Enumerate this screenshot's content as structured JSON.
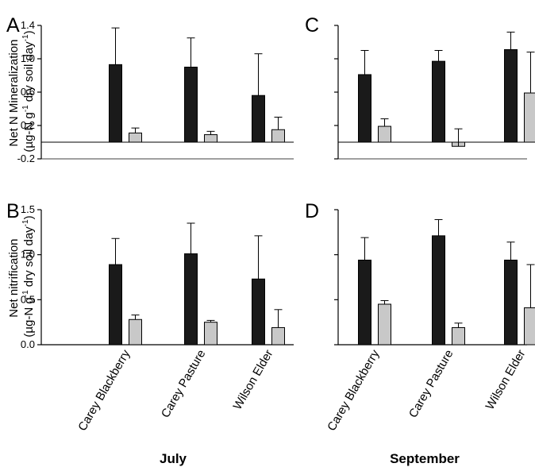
{
  "chart_data": [
    {
      "panel": "A",
      "type": "bar",
      "categories": [
        "Carey Blackberry",
        "Carey Pasture",
        "Wilson Elder"
      ],
      "series": [
        {
          "color": "#1a1a1a",
          "values": [
            0.93,
            0.9,
            0.56
          ],
          "errors": [
            0.44,
            0.35,
            0.5
          ]
        },
        {
          "color": "#c8c8c8",
          "values": [
            0.11,
            0.09,
            0.15
          ],
          "errors": [
            0.06,
            0.04,
            0.15
          ]
        }
      ],
      "ylim": [
        -0.2,
        1.4
      ],
      "yticks": [
        -0.2,
        0.2,
        0.6,
        1.0,
        1.4
      ],
      "ytick_labels": [
        "-0.2",
        "0.2",
        "0.6",
        "1.0",
        "1.4"
      ],
      "zero_line": true,
      "ylabel_lines": [
        "Net N Mineralization",
        "(µg-N g",
        "-1",
        " dry soil day",
        "-1",
        ")"
      ]
    },
    {
      "panel": "C",
      "type": "bar",
      "categories": [
        "Carey Blackberry",
        "Carey Pasture",
        "Wilson Elder"
      ],
      "series": [
        {
          "color": "#1a1a1a",
          "values": [
            0.81,
            0.97,
            1.11
          ],
          "errors": [
            0.29,
            0.13,
            0.21
          ]
        },
        {
          "color": "#c8c8c8",
          "values": [
            0.19,
            -0.05,
            0.59
          ],
          "errors": [
            0.09,
            0.21,
            0.49
          ]
        }
      ],
      "ylim": [
        -0.2,
        1.4
      ],
      "zero_line": true
    },
    {
      "panel": "B",
      "type": "bar",
      "categories": [
        "Carey Blackberry",
        "Carey Pasture",
        "Wilson Elder"
      ],
      "series": [
        {
          "color": "#1a1a1a",
          "values": [
            0.89,
            1.01,
            0.73
          ],
          "errors": [
            0.29,
            0.34,
            0.48
          ]
        },
        {
          "color": "#c8c8c8",
          "values": [
            0.28,
            0.25,
            0.19
          ],
          "errors": [
            0.05,
            0.02,
            0.2
          ]
        }
      ],
      "ylim": [
        0,
        1.5
      ],
      "yticks": [
        0.0,
        0.5,
        1.0,
        1.5
      ],
      "ytick_labels": [
        "0.0",
        "0.5",
        "1.0",
        "1.5"
      ],
      "ylabel_lines": [
        "Net nitrification",
        "(µg-N g",
        "-1",
        " dry soil day",
        "-1",
        ")"
      ]
    },
    {
      "panel": "D",
      "type": "bar",
      "categories": [
        "Carey Blackberry",
        "Carey Pasture",
        "Wilson Elder"
      ],
      "series": [
        {
          "color": "#1a1a1a",
          "values": [
            0.94,
            1.21,
            0.94
          ],
          "errors": [
            0.25,
            0.18,
            0.2
          ]
        },
        {
          "color": "#c8c8c8",
          "values": [
            0.45,
            0.19,
            0.41
          ],
          "errors": [
            0.04,
            0.05,
            0.48
          ]
        }
      ],
      "ylim": [
        0,
        1.5
      ]
    }
  ],
  "labels": {
    "panel_a": "A",
    "panel_b": "B",
    "panel_c": "C",
    "panel_d": "D",
    "cat_1": "Carey Blackberry",
    "cat_2": "Carey Pasture",
    "cat_3": "Wilson Elder",
    "month_left": "July",
    "month_right": "September"
  }
}
